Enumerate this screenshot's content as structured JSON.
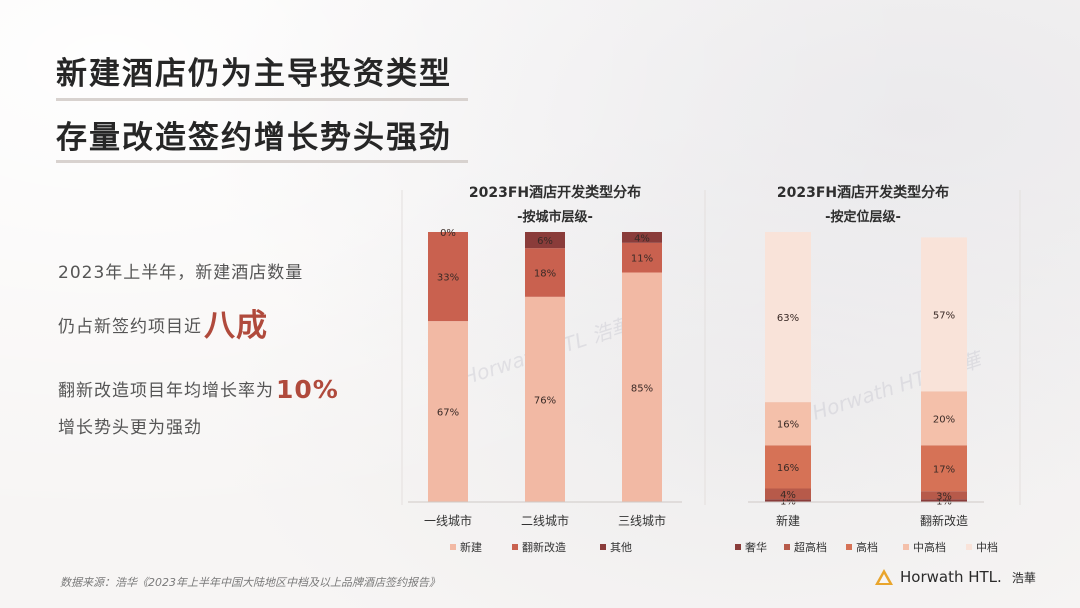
{
  "title": {
    "line1": "新建酒店仍为主导投资类型",
    "line2": "存量改造签约增长势头强劲"
  },
  "lead": {
    "line1": "2023年上半年，新建酒店数量",
    "line2_prefix": "仍占新签约项目近",
    "line2_emph": "八成",
    "line3_prefix": "翻新改造项目年均增长率为",
    "line3_emph": "10%",
    "line4": "增长势头更为强劲"
  },
  "source": "数据来源：浩华《2023年上半年中国大陆地区中档及以上品牌酒店签约报告》",
  "brand": {
    "name": "Horwath HTL.",
    "cn": "浩華"
  },
  "watermark": "Horwath HTL 浩華",
  "chart_data": [
    {
      "type": "bar",
      "stacked": true,
      "title": "2023FH酒店开发类型分布",
      "subtitle": "-按城市层级-",
      "categories": [
        "一线城市",
        "二线城市",
        "三线城市"
      ],
      "series": [
        {
          "name": "新建",
          "color": "#f2b9a4",
          "values": [
            67,
            76,
            85
          ],
          "labels": [
            "67%",
            "76%",
            "85%"
          ]
        },
        {
          "name": "翻新改造",
          "color": "#c9614f",
          "values": [
            33,
            18,
            11
          ],
          "labels": [
            "33%",
            "18%",
            "11%"
          ]
        },
        {
          "name": "其他",
          "color": "#8a3c3a",
          "values": [
            0,
            6,
            4
          ],
          "labels": [
            "0%",
            "6%",
            "4%"
          ]
        }
      ],
      "ylim": [
        0,
        100
      ],
      "legend": "bottom"
    },
    {
      "type": "bar",
      "stacked": true,
      "title": "2023FH酒店开发类型分布",
      "subtitle": "-按定位层级-",
      "categories": [
        "新建",
        "翻新改造"
      ],
      "series": [
        {
          "name": "奢华",
          "color": "#8a3c3a",
          "values": [
            1,
            1
          ],
          "labels": [
            "1%",
            "1%"
          ]
        },
        {
          "name": "超高档",
          "color": "#b75a4a",
          "values": [
            4,
            3
          ],
          "labels": [
            "4%",
            "3%"
          ]
        },
        {
          "name": "高档",
          "color": "#d67256",
          "values": [
            16,
            17
          ],
          "labels": [
            "16%",
            "17%"
          ]
        },
        {
          "name": "中高档",
          "color": "#f4c0aa",
          "values": [
            16,
            20
          ],
          "labels": [
            "16%",
            "20%"
          ]
        },
        {
          "name": "中档",
          "color": "#f9e3d9",
          "values": [
            63,
            57
          ],
          "labels": [
            "63%",
            "57%"
          ]
        }
      ],
      "ylim": [
        0,
        100
      ],
      "legend": "bottom"
    }
  ]
}
